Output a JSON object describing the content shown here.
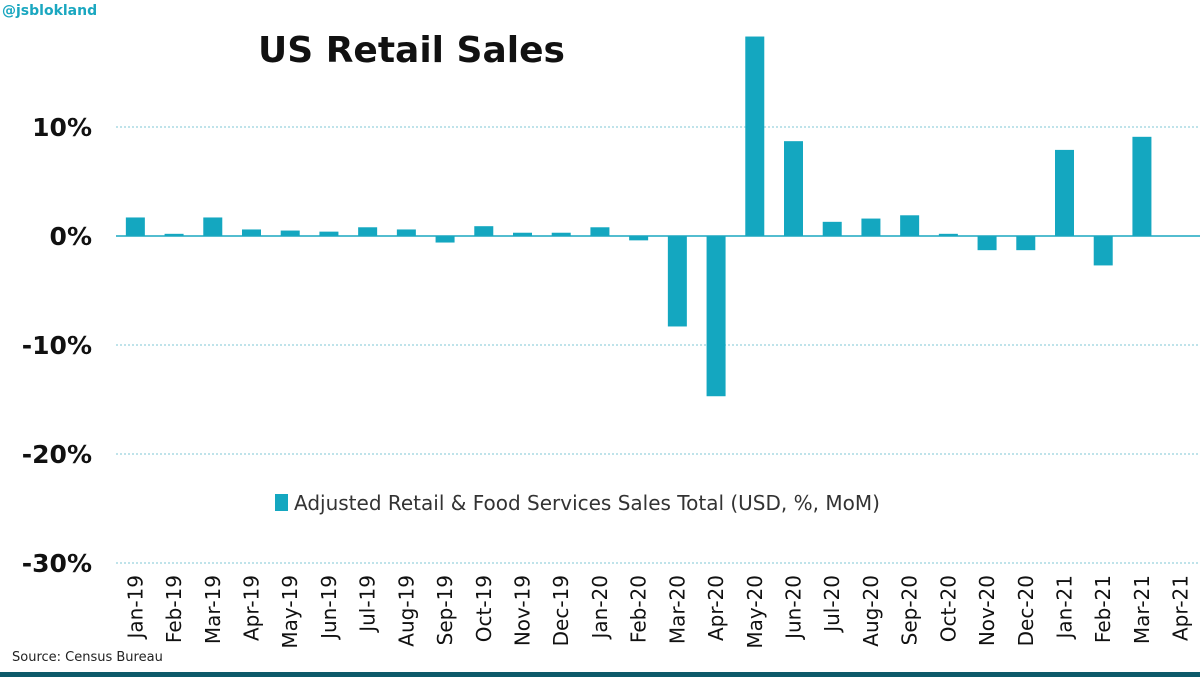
{
  "handle": "@jsblokland",
  "source": "Source: Census Bureau",
  "colors": {
    "bar": "#14a7c0",
    "grid": "#7fc7d5",
    "zero": "#1aa7c0",
    "footer": "#0d5a6a"
  },
  "chart_data": {
    "type": "bar",
    "title": "US Retail Sales",
    "categories": [
      "Jan-19",
      "Feb-19",
      "Mar-19",
      "Apr-19",
      "May-19",
      "Jun-19",
      "Jul-19",
      "Aug-19",
      "Sep-19",
      "Oct-19",
      "Nov-19",
      "Dec-19",
      "Jan-20",
      "Feb-20",
      "Mar-20",
      "Apr-20",
      "May-20",
      "Jun-20",
      "Jul-20",
      "Aug-20",
      "Sep-20",
      "Oct-20",
      "Nov-20",
      "Dec-20",
      "Jan-21",
      "Feb-21",
      "Mar-21",
      "Apr-21"
    ],
    "series": [
      {
        "name": "Adjusted Retail & Food Services Sales Total (USD, %, MoM)",
        "values": [
          1.7,
          0.2,
          1.7,
          0.6,
          0.5,
          0.4,
          0.8,
          0.6,
          -0.6,
          0.9,
          0.3,
          0.3,
          0.8,
          -0.4,
          -8.3,
          -14.7,
          18.3,
          8.7,
          1.3,
          1.6,
          1.9,
          0.2,
          -1.3,
          -1.3,
          7.9,
          -2.7,
          9.1,
          null
        ]
      }
    ],
    "yticks": [
      10,
      0,
      -10,
      -20,
      -30
    ],
    "ytick_labels": [
      "10%",
      "0%",
      "-10%",
      "-20%",
      "-30%"
    ],
    "ylim": [
      -30,
      20
    ],
    "grid": true,
    "legend": "inside-bottom-center"
  }
}
